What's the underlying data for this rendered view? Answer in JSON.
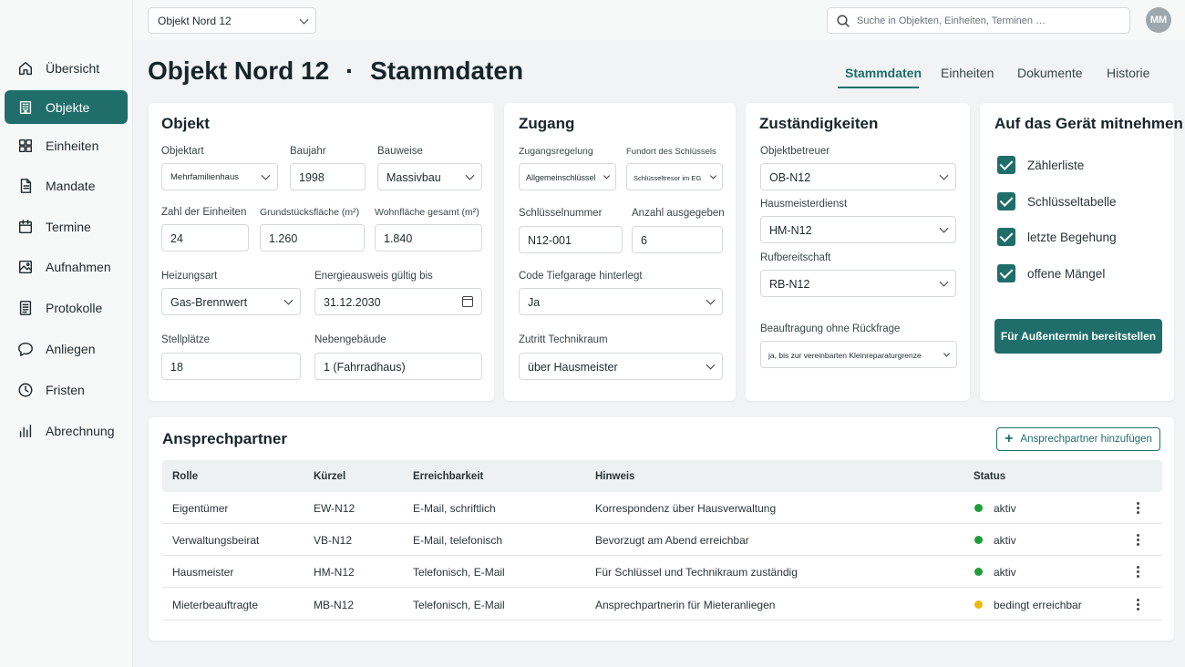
{
  "topbar": {
    "object_select": "Objekt Nord 12",
    "search_placeholder": "Suche in Objekten, Einheiten, Terminen …",
    "avatar_initials": "MM"
  },
  "sidebar": {
    "items": [
      {
        "label": "Übersicht",
        "icon": "home-icon"
      },
      {
        "label": "Objekte",
        "icon": "building-icon",
        "active": true
      },
      {
        "label": "Einheiten",
        "icon": "grid-icon"
      },
      {
        "label": "Mandate",
        "icon": "document-icon"
      },
      {
        "label": "Termine",
        "icon": "calendar-icon"
      },
      {
        "label": "Aufnahmen",
        "icon": "image-icon"
      },
      {
        "label": "Protokolle",
        "icon": "list-icon"
      },
      {
        "label": "Anliegen",
        "icon": "chat-icon"
      },
      {
        "label": "Fristen",
        "icon": "clock-icon"
      },
      {
        "label": "Abrechnung",
        "icon": "bar-chart-icon"
      }
    ]
  },
  "header": {
    "title": "Objekt Nord 12",
    "separator": "·",
    "subtitle": "Stammdaten",
    "tabs": [
      {
        "label": "Stammdaten",
        "active": true
      },
      {
        "label": "Einheiten"
      },
      {
        "label": "Dokumente"
      },
      {
        "label": "Historie"
      }
    ]
  },
  "objekt": {
    "title": "Objekt",
    "objektart_label": "Objektart",
    "objektart": "Mehrfamilienhaus",
    "baujahr_label": "Baujahr",
    "baujahr": "1998",
    "bauweise_label": "Bauweise",
    "bauweise": "Massivbau",
    "einheiten_label": "Zahl der Einheiten",
    "einheiten": "24",
    "grundstueck_label": "Grundstücksfläche (m²)",
    "grundstueck": "1.260",
    "wohnflaeche_label": "Wohnfläche gesamt (m²)",
    "wohnflaeche": "1.840",
    "heizung_label": "Heizungsart",
    "heizung": "Gas-Brennwert",
    "energie_label": "Energieausweis gültig bis",
    "energie": "31.12.2030",
    "stellplaetze_label": "Stellplätze",
    "stellplaetze": "18",
    "nebengebaeude_label": "Nebengebäude",
    "nebengebaeude": "1 (Fahrradhaus)"
  },
  "zugang": {
    "title": "Zugang",
    "regelung_label": "Zugangsregelung",
    "regelung": "Allgemeinschlüssel",
    "fundort_label": "Fundort des Schlüssels",
    "fundort": "Schlüsseltresor im EG",
    "nummer_label": "Schlüsselnummer",
    "nummer": "N12-001",
    "anzahl_label": "Anzahl ausgegeben",
    "anzahl": "6",
    "code_label": "Code Tiefgarage hinterlegt",
    "code": "Ja",
    "technik_label": "Zutritt Technikraum",
    "technik": "über Hausmeister"
  },
  "zustaendigkeiten": {
    "title": "Zuständigkeiten",
    "betreuer_label": "Objektbetreuer",
    "betreuer": "OB-N12",
    "hausmeister_label": "Hausmeisterdienst",
    "hausmeister": "HM-N12",
    "ruf_label": "Rufbereitschaft",
    "ruf": "RB-N12",
    "beauftragung_label": "Beauftragung ohne Rückfrage",
    "beauftragung": "ja, bis zur vereinbarten Kleinreparaturgrenze"
  },
  "mitnehmen": {
    "title": "Auf das Gerät mitnehmen",
    "items": [
      "Zählerliste",
      "Schlüsseltabelle",
      "letzte Begehung",
      "offene Mängel"
    ],
    "button": "Für Außentermin bereitstellen"
  },
  "contacts": {
    "title": "Ansprechpartner",
    "add_button": "Ansprechpartner hinzufügen",
    "headers": [
      "Rolle",
      "Kürzel",
      "Erreichbarkeit",
      "Hinweis",
      "Status"
    ],
    "rows": [
      {
        "rolle": "Eigentümer",
        "kuerzel": "EW-N12",
        "erreichbarkeit": "E-Mail, schriftlich",
        "hinweis": "Korrespondenz über Hausverwaltung",
        "status": "aktiv",
        "status_color": "#1f9d3a"
      },
      {
        "rolle": "Verwaltungsbeirat",
        "kuerzel": "VB-N12",
        "erreichbarkeit": "E-Mail, telefonisch",
        "hinweis": "Bevorzugt am Abend erreichbar",
        "status": "aktiv",
        "status_color": "#1f9d3a"
      },
      {
        "rolle": "Hausmeister",
        "kuerzel": "HM-N12",
        "erreichbarkeit": "Telefonisch, E-Mail",
        "hinweis": "Für Schlüssel und Technikraum zuständig",
        "status": "aktiv",
        "status_color": "#1f9d3a"
      },
      {
        "rolle": "Mieterbeauftragte",
        "kuerzel": "MB-N12",
        "erreichbarkeit": "Telefonisch, E-Mail",
        "hinweis": "Ansprechpartnerin für Mieteranliegen",
        "status": "bedingt erreichbar",
        "status_color": "#e8b90f"
      }
    ]
  },
  "colors": {
    "accent": "#1f6e6b",
    "active_status": "#1f9d3a",
    "warning_status": "#e8b90f"
  }
}
